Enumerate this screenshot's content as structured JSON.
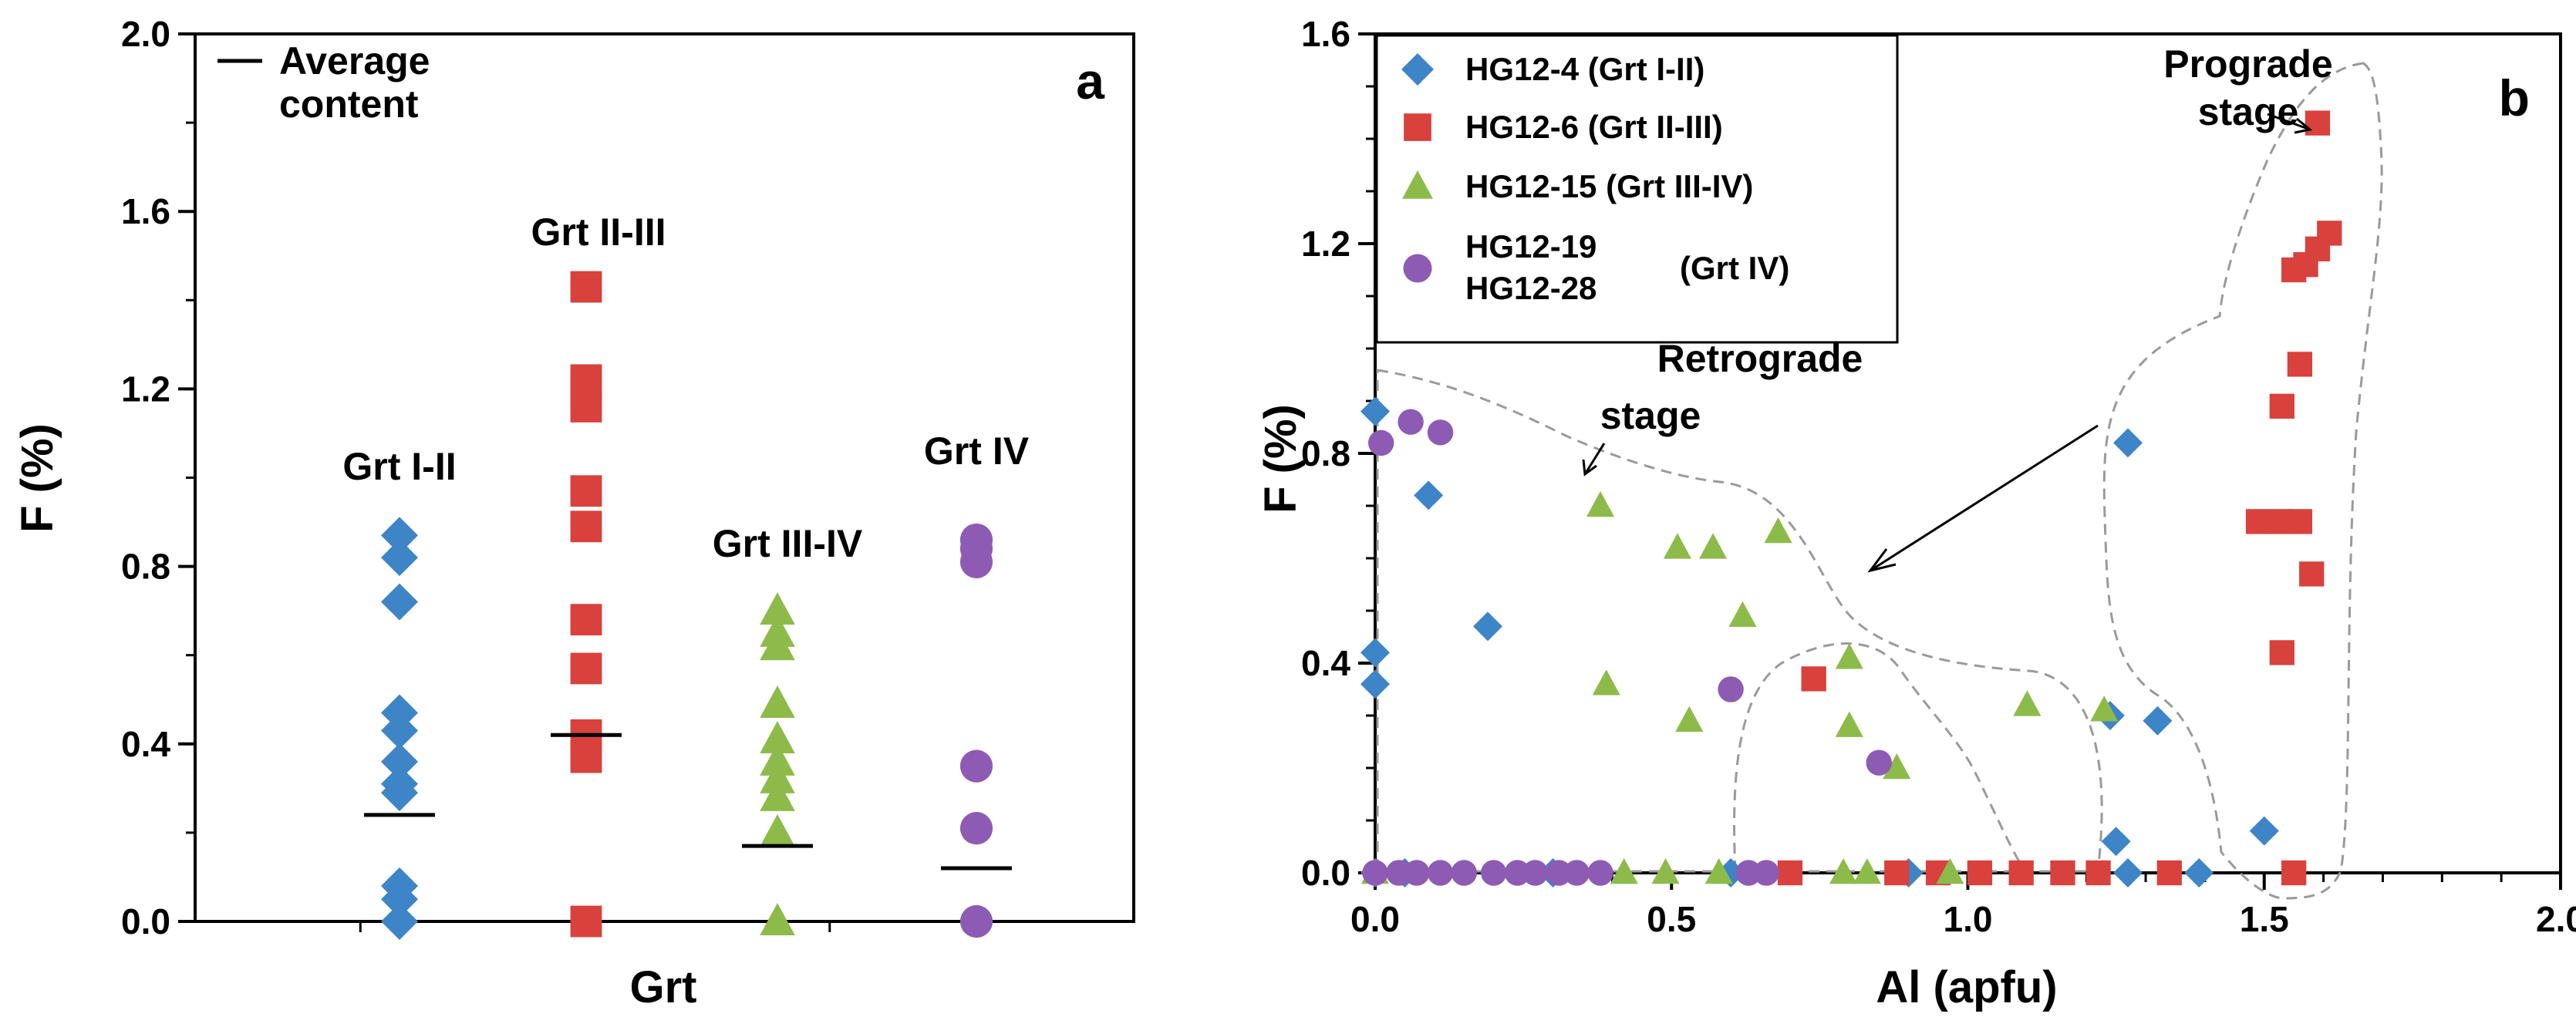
{
  "colors": {
    "grt_I_II": "#3d85c6",
    "grt_II_III": "#d9413c",
    "grt_III_IV": "#8dbb4a",
    "grt_IV": "#8e5bb4",
    "average_line": "#000000"
  },
  "chart_data": [
    {
      "panel": "a",
      "type": "scatter",
      "ylabel": "F (%)",
      "xlabel": "Grt",
      "ylim": [
        0.0,
        2.0
      ],
      "yticks": [
        "0.0",
        "0.4",
        "0.8",
        "1.2",
        "1.6",
        "2.0"
      ],
      "legend": {
        "entry": "Average content",
        "line1": "Average",
        "line2": "content",
        "position": "top-left"
      },
      "series": [
        {
          "name": "Grt I-II",
          "label": "Grt I-II",
          "marker": "diamond",
          "color_key": "grt_I_II",
          "values": [
            0.87,
            0.82,
            0.72,
            0.47,
            0.43,
            0.36,
            0.31,
            0.29,
            0.08,
            0.05,
            0.0
          ],
          "average": 0.24
        },
        {
          "name": "Grt II-III",
          "label": "Grt II-III",
          "marker": "square",
          "color_key": "grt_II_III",
          "values": [
            1.43,
            1.22,
            1.19,
            1.16,
            0.97,
            0.89,
            0.68,
            0.57,
            0.42,
            0.37,
            0.0
          ],
          "average": 0.42
        },
        {
          "name": "Grt III-IV",
          "label": "Grt III-IV",
          "marker": "triangle",
          "color_key": "grt_III_IV",
          "values": [
            0.7,
            0.65,
            0.62,
            0.49,
            0.41,
            0.36,
            0.32,
            0.28,
            0.2,
            0.0
          ],
          "average": 0.17
        },
        {
          "name": "Grt IV",
          "label": "Grt IV",
          "marker": "circle",
          "color_key": "grt_IV",
          "values": [
            0.86,
            0.84,
            0.81,
            0.35,
            0.21,
            0.0
          ],
          "average": 0.12
        }
      ]
    },
    {
      "panel": "b",
      "type": "scatter",
      "xlabel": "Al (apfu)",
      "ylabel": "F (%)",
      "xlim": [
        0.0,
        2.0
      ],
      "ylim": [
        0.0,
        1.6
      ],
      "xticks": [
        "0.0",
        "0.5",
        "1.0",
        "1.5",
        "2.0"
      ],
      "yticks": [
        "0.0",
        "0.4",
        "0.8",
        "1.2",
        "1.6"
      ],
      "legend_position": "top-left",
      "annotations": {
        "prograde_line1": "Prograde",
        "prograde_line2": "stage",
        "retrograde_line1": "Retrograde",
        "retrograde_line2": "stage"
      },
      "series": [
        {
          "name": "HG12-4",
          "note": "(Grt I-II)",
          "marker": "diamond",
          "color_key": "grt_I_II",
          "points": [
            [
              0.0,
              0.88
            ],
            [
              0.0,
              0.42
            ],
            [
              0.0,
              0.36
            ],
            [
              0.09,
              0.72
            ],
            [
              0.19,
              0.47
            ],
            [
              1.27,
              0.82
            ],
            [
              1.24,
              0.3
            ],
            [
              1.32,
              0.29
            ],
            [
              1.25,
              0.06
            ],
            [
              1.5,
              0.08
            ],
            [
              0.0,
              0.0
            ],
            [
              0.05,
              0.0
            ],
            [
              0.3,
              0.0
            ],
            [
              0.6,
              0.0
            ],
            [
              0.9,
              0.0
            ],
            [
              1.27,
              0.0
            ],
            [
              1.39,
              0.0
            ]
          ]
        },
        {
          "name": "HG12-6",
          "note": "(Grt II-III)",
          "marker": "square",
          "color_key": "grt_II_III",
          "points": [
            [
              1.59,
              1.43
            ],
            [
              1.61,
              1.22
            ],
            [
              1.59,
              1.19
            ],
            [
              1.57,
              1.16
            ],
            [
              1.55,
              1.15
            ],
            [
              1.56,
              0.97
            ],
            [
              1.53,
              0.89
            ],
            [
              1.53,
              0.67
            ],
            [
              1.49,
              0.67
            ],
            [
              1.56,
              0.67
            ],
            [
              1.58,
              0.57
            ],
            [
              1.53,
              0.42
            ],
            [
              0.74,
              0.37
            ],
            [
              0.7,
              0.0
            ],
            [
              0.88,
              0.0
            ],
            [
              0.95,
              0.0
            ],
            [
              1.02,
              0.0
            ],
            [
              1.09,
              0.0
            ],
            [
              1.16,
              0.0
            ],
            [
              1.22,
              0.0
            ],
            [
              1.34,
              0.0
            ],
            [
              1.55,
              0.0
            ]
          ]
        },
        {
          "name": "HG12-15",
          "note": "(Grt III-IV)",
          "marker": "triangle",
          "color_key": "grt_III_IV",
          "points": [
            [
              0.38,
              0.7
            ],
            [
              0.51,
              0.62
            ],
            [
              0.57,
              0.62
            ],
            [
              0.68,
              0.65
            ],
            [
              0.62,
              0.49
            ],
            [
              0.39,
              0.36
            ],
            [
              0.8,
              0.41
            ],
            [
              0.8,
              0.28
            ],
            [
              0.53,
              0.29
            ],
            [
              0.88,
              0.2
            ],
            [
              1.1,
              0.32
            ],
            [
              1.23,
              0.31
            ],
            [
              0.0,
              0.0
            ],
            [
              0.42,
              0.0
            ],
            [
              0.49,
              0.0
            ],
            [
              0.58,
              0.0
            ],
            [
              0.79,
              0.0
            ],
            [
              0.83,
              0.0
            ],
            [
              0.97,
              0.0
            ]
          ]
        },
        {
          "name": "HG12-19",
          "name2": "HG12-28",
          "note": "(Grt IV)",
          "marker": "circle",
          "color_key": "grt_IV",
          "points": [
            [
              0.01,
              0.82
            ],
            [
              0.06,
              0.86
            ],
            [
              0.11,
              0.84
            ],
            [
              0.6,
              0.35
            ],
            [
              0.85,
              0.21
            ],
            [
              0.0,
              0.0
            ],
            [
              0.04,
              0.0
            ],
            [
              0.07,
              0.0
            ],
            [
              0.11,
              0.0
            ],
            [
              0.15,
              0.0
            ],
            [
              0.2,
              0.0
            ],
            [
              0.24,
              0.0
            ],
            [
              0.27,
              0.0
            ],
            [
              0.31,
              0.0
            ],
            [
              0.34,
              0.0
            ],
            [
              0.38,
              0.0
            ],
            [
              0.63,
              0.0
            ],
            [
              0.66,
              0.0
            ]
          ]
        }
      ]
    }
  ]
}
